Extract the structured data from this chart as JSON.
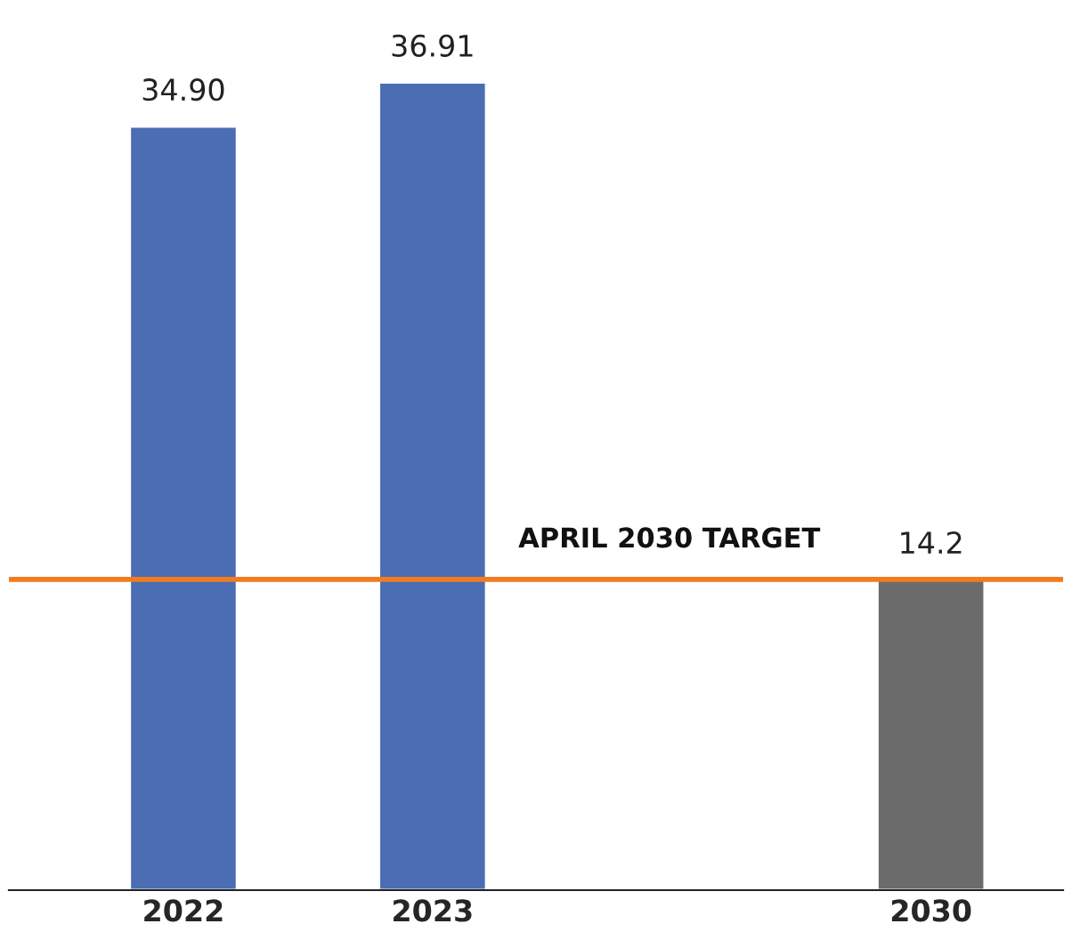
{
  "chart_data": {
    "type": "bar",
    "categories": [
      "2022",
      "2023",
      null,
      "2030"
    ],
    "values": [
      34.9,
      36.91,
      null,
      14.2
    ],
    "colors": [
      "#4a6db3",
      "#4a6db3",
      "#6b6b6b",
      "#6b6b6b"
    ],
    "value_labels": [
      "34.90",
      "36.91",
      null,
      "14.2"
    ],
    "tick_labels": "x",
    "grid": false,
    "legend": false,
    "ref_lines": [
      {
        "axis": "y",
        "value": 14.2,
        "label": "APRIL 2030 TARGET",
        "color": "#f07c22",
        "line_style": "solid"
      }
    ]
  }
}
